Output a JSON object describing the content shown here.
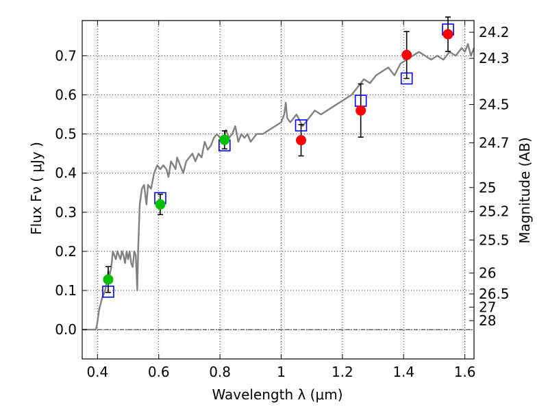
{
  "chart_data": {
    "type": "scatter",
    "xlabel": "Wavelength  λ (μm)",
    "ylabel": "Flux  Fν  ( μJy )",
    "ylabel_right": "Magnitude (AB)",
    "xlim": [
      0.35,
      1.63
    ],
    "ylim": [
      -0.075,
      0.79
    ],
    "x_ticks": [
      {
        "value": 0.4,
        "label": "0.4"
      },
      {
        "value": 0.6,
        "label": "0.6"
      },
      {
        "value": 0.8,
        "label": "0.8"
      },
      {
        "value": 1.0,
        "label": "1"
      },
      {
        "value": 1.2,
        "label": "1.2"
      },
      {
        "value": 1.4,
        "label": "1.4"
      },
      {
        "value": 1.6,
        "label": "1.6"
      }
    ],
    "y_ticks": [
      {
        "value": 0.0,
        "label": "0.0"
      },
      {
        "value": 0.1,
        "label": "0.1"
      },
      {
        "value": 0.2,
        "label": "0.2"
      },
      {
        "value": 0.3,
        "label": "0.3"
      },
      {
        "value": 0.4,
        "label": "0.4"
      },
      {
        "value": 0.5,
        "label": "0.5"
      },
      {
        "value": 0.6,
        "label": "0.6"
      },
      {
        "value": 0.7,
        "label": "0.7"
      }
    ],
    "right_ticks": [
      {
        "flux": 0.7601,
        "label": "24.2"
      },
      {
        "flux": 0.6934,
        "label": "24.3"
      },
      {
        "flux": 0.5754,
        "label": "24.5"
      },
      {
        "flux": 0.4775,
        "label": "24.7"
      },
      {
        "flux": 0.3631,
        "label": "25"
      },
      {
        "flux": 0.302,
        "label": "25.2"
      },
      {
        "flux": 0.2291,
        "label": "25.5"
      },
      {
        "flux": 0.1445,
        "label": "26"
      },
      {
        "flux": 0.0912,
        "label": "26.5"
      },
      {
        "flux": 0.0575,
        "label": "27"
      },
      {
        "flux": 0.0229,
        "label": "28"
      }
    ],
    "grid": true,
    "series": [
      {
        "kind": "line",
        "color": "#808080",
        "x": [
          0.35,
          0.395,
          0.4,
          0.405,
          0.415,
          0.425,
          0.43,
          0.435,
          0.44,
          0.445,
          0.45,
          0.455,
          0.46,
          0.465,
          0.47,
          0.475,
          0.48,
          0.485,
          0.49,
          0.495,
          0.5,
          0.505,
          0.51,
          0.515,
          0.52,
          0.525,
          0.53,
          0.533,
          0.538,
          0.545,
          0.552,
          0.56,
          0.565,
          0.575,
          0.585,
          0.595,
          0.605,
          0.615,
          0.625,
          0.632,
          0.64,
          0.648,
          0.655,
          0.66,
          0.67,
          0.68,
          0.69,
          0.7,
          0.71,
          0.72,
          0.73,
          0.74,
          0.75,
          0.76,
          0.77,
          0.78,
          0.79,
          0.8,
          0.81,
          0.82,
          0.83,
          0.84,
          0.85,
          0.86,
          0.87,
          0.88,
          0.89,
          0.9,
          0.92,
          0.94,
          0.96,
          0.98,
          1.0,
          1.01,
          1.015,
          1.02,
          1.03,
          1.05,
          1.07,
          1.09,
          1.11,
          1.13,
          1.15,
          1.17,
          1.19,
          1.21,
          1.23,
          1.25,
          1.27,
          1.29,
          1.31,
          1.33,
          1.35,
          1.37,
          1.39,
          1.41,
          1.43,
          1.45,
          1.47,
          1.49,
          1.51,
          1.53,
          1.55,
          1.57,
          1.59,
          1.6,
          1.61,
          1.62,
          1.63
        ],
        "y": [
          0.0,
          0.0,
          0.02,
          0.05,
          0.08,
          0.1,
          0.12,
          0.15,
          0.14,
          0.16,
          0.2,
          0.19,
          0.18,
          0.2,
          0.19,
          0.18,
          0.2,
          0.19,
          0.17,
          0.2,
          0.18,
          0.2,
          0.17,
          0.16,
          0.2,
          0.19,
          0.1,
          0.21,
          0.32,
          0.36,
          0.37,
          0.32,
          0.37,
          0.36,
          0.4,
          0.42,
          0.41,
          0.42,
          0.41,
          0.39,
          0.43,
          0.42,
          0.41,
          0.44,
          0.42,
          0.4,
          0.43,
          0.44,
          0.45,
          0.43,
          0.45,
          0.44,
          0.48,
          0.46,
          0.47,
          0.49,
          0.5,
          0.49,
          0.48,
          0.51,
          0.49,
          0.5,
          0.52,
          0.48,
          0.5,
          0.49,
          0.5,
          0.48,
          0.5,
          0.5,
          0.51,
          0.52,
          0.53,
          0.55,
          0.58,
          0.54,
          0.53,
          0.55,
          0.52,
          0.54,
          0.56,
          0.55,
          0.56,
          0.57,
          0.58,
          0.59,
          0.6,
          0.62,
          0.64,
          0.63,
          0.65,
          0.66,
          0.67,
          0.65,
          0.68,
          0.69,
          0.7,
          0.71,
          0.7,
          0.69,
          0.7,
          0.69,
          0.71,
          0.7,
          0.72,
          0.71,
          0.73,
          0.7,
          0.72
        ]
      },
      {
        "kind": "markers",
        "marker": "square",
        "color": "#0000ff",
        "x": [
          0.435,
          0.605,
          0.815,
          1.065,
          1.26,
          1.41,
          1.545
        ],
        "y": [
          0.097,
          0.336,
          0.471,
          0.522,
          0.585,
          0.642,
          0.767
        ]
      },
      {
        "kind": "markers",
        "marker": "circle",
        "color": "#00c000",
        "x": [
          0.435,
          0.605,
          0.815
        ],
        "y": [
          0.128,
          0.32,
          0.485
        ],
        "yerr": [
          0.033,
          0.026,
          0.023
        ]
      },
      {
        "kind": "markers",
        "marker": "circle",
        "color": "#ff0000",
        "x": [
          1.065,
          1.26,
          1.41,
          1.545
        ],
        "y": [
          0.484,
          0.56,
          0.702,
          0.755
        ],
        "yerr": [
          0.04,
          0.068,
          0.06,
          0.044
        ]
      }
    ]
  }
}
